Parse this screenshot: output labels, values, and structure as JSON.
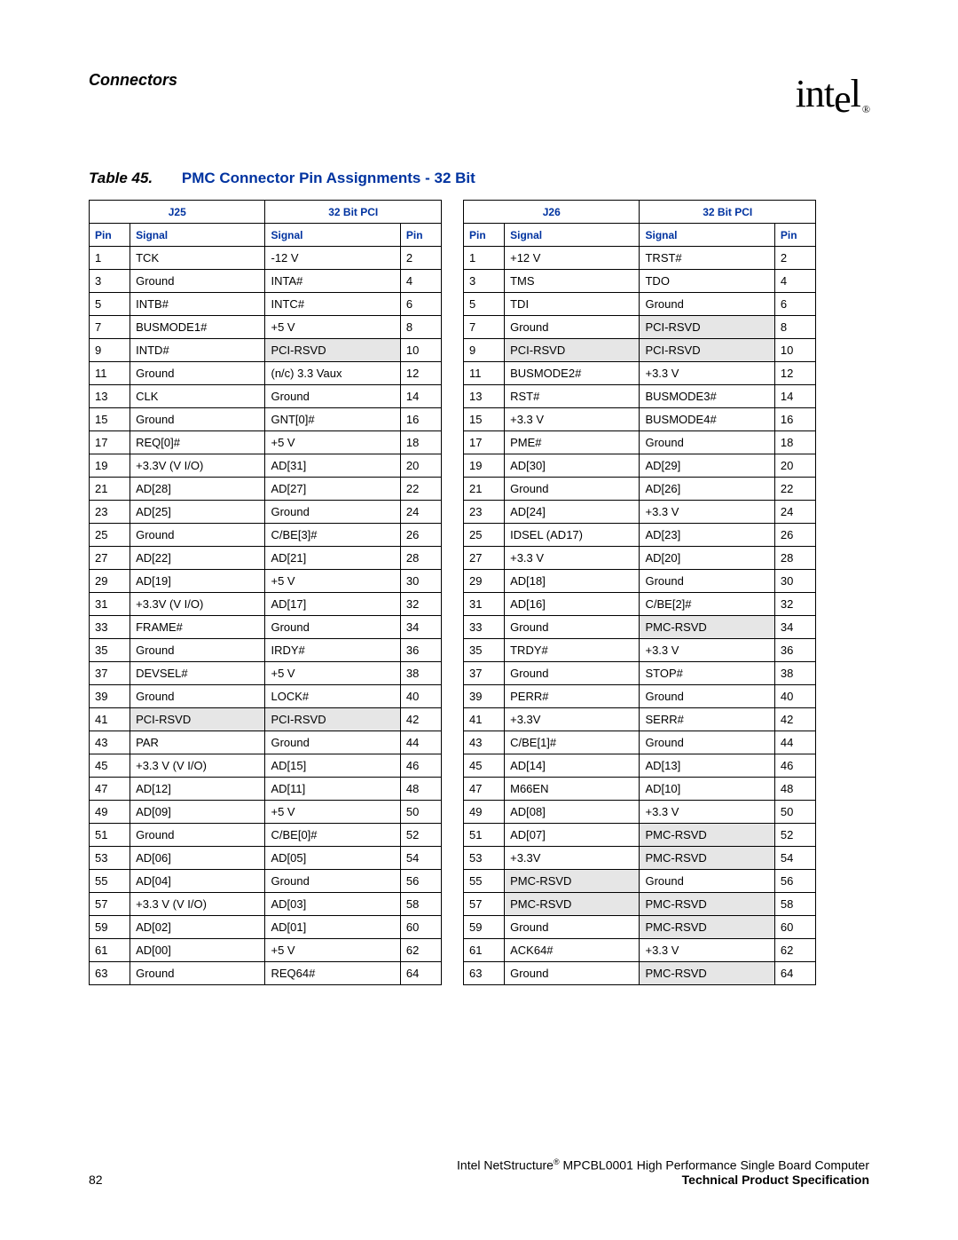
{
  "header": {
    "section": "Connectors",
    "logo_text": "intel",
    "logo_reg": "®"
  },
  "caption": {
    "label": "Table 45.",
    "title": "PMC Connector Pin Assignments - 32 Bit"
  },
  "col_headers": {
    "pin": "Pin",
    "signal": "Signal"
  },
  "table_left": {
    "conn": "J25",
    "group": "32 Bit PCI",
    "rows": [
      {
        "p1": "1",
        "s1": "TCK",
        "s2": "-12 V",
        "p2": "2",
        "sh1": false,
        "sh2": false
      },
      {
        "p1": "3",
        "s1": "Ground",
        "s2": "INTA#",
        "p2": "4",
        "sh1": false,
        "sh2": false
      },
      {
        "p1": "5",
        "s1": "INTB#",
        "s2": "INTC#",
        "p2": "6",
        "sh1": false,
        "sh2": false
      },
      {
        "p1": "7",
        "s1": "BUSMODE1#",
        "s2": "+5 V",
        "p2": "8",
        "sh1": false,
        "sh2": false
      },
      {
        "p1": "9",
        "s1": "INTD#",
        "s2": "PCI-RSVD",
        "p2": "10",
        "sh1": false,
        "sh2": true
      },
      {
        "p1": "11",
        "s1": "Ground",
        "s2": "(n/c) 3.3 Vaux",
        "p2": "12",
        "sh1": false,
        "sh2": false
      },
      {
        "p1": "13",
        "s1": "CLK",
        "s2": "Ground",
        "p2": "14",
        "sh1": false,
        "sh2": false
      },
      {
        "p1": "15",
        "s1": "Ground",
        "s2": "GNT[0]#",
        "p2": "16",
        "sh1": false,
        "sh2": false
      },
      {
        "p1": "17",
        "s1": "REQ[0]#",
        "s2": "+5 V",
        "p2": "18",
        "sh1": false,
        "sh2": false
      },
      {
        "p1": "19",
        "s1": "+3.3V (V I/O)",
        "s2": "AD[31]",
        "p2": "20",
        "sh1": false,
        "sh2": false
      },
      {
        "p1": "21",
        "s1": "AD[28]",
        "s2": "AD[27]",
        "p2": "22",
        "sh1": false,
        "sh2": false
      },
      {
        "p1": "23",
        "s1": "AD[25]",
        "s2": "Ground",
        "p2": "24",
        "sh1": false,
        "sh2": false
      },
      {
        "p1": "25",
        "s1": "Ground",
        "s2": "C/BE[3]#",
        "p2": "26",
        "sh1": false,
        "sh2": false
      },
      {
        "p1": "27",
        "s1": "AD[22]",
        "s2": "AD[21]",
        "p2": "28",
        "sh1": false,
        "sh2": false
      },
      {
        "p1": "29",
        "s1": "AD[19]",
        "s2": "+5 V",
        "p2": "30",
        "sh1": false,
        "sh2": false
      },
      {
        "p1": "31",
        "s1": "+3.3V (V I/O)",
        "s2": "AD[17]",
        "p2": "32",
        "sh1": false,
        "sh2": false
      },
      {
        "p1": "33",
        "s1": "FRAME#",
        "s2": "Ground",
        "p2": "34",
        "sh1": false,
        "sh2": false
      },
      {
        "p1": "35",
        "s1": "Ground",
        "s2": "IRDY#",
        "p2": "36",
        "sh1": false,
        "sh2": false
      },
      {
        "p1": "37",
        "s1": "DEVSEL#",
        "s2": "+5 V",
        "p2": "38",
        "sh1": false,
        "sh2": false
      },
      {
        "p1": "39",
        "s1": "Ground",
        "s2": "LOCK#",
        "p2": "40",
        "sh1": false,
        "sh2": false
      },
      {
        "p1": "41",
        "s1": "PCI-RSVD",
        "s2": "PCI-RSVD",
        "p2": "42",
        "sh1": true,
        "sh2": true
      },
      {
        "p1": "43",
        "s1": "PAR",
        "s2": "Ground",
        "p2": "44",
        "sh1": false,
        "sh2": false
      },
      {
        "p1": "45",
        "s1": "+3.3 V (V I/O)",
        "s2": "AD[15]",
        "p2": "46",
        "sh1": false,
        "sh2": false
      },
      {
        "p1": "47",
        "s1": "AD[12]",
        "s2": "AD[11]",
        "p2": "48",
        "sh1": false,
        "sh2": false
      },
      {
        "p1": "49",
        "s1": "AD[09]",
        "s2": "+5 V",
        "p2": "50",
        "sh1": false,
        "sh2": false
      },
      {
        "p1": "51",
        "s1": "Ground",
        "s2": "C/BE[0]#",
        "p2": "52",
        "sh1": false,
        "sh2": false
      },
      {
        "p1": "53",
        "s1": "AD[06]",
        "s2": "AD[05]",
        "p2": "54",
        "sh1": false,
        "sh2": false
      },
      {
        "p1": "55",
        "s1": "AD[04]",
        "s2": "Ground",
        "p2": "56",
        "sh1": false,
        "sh2": false
      },
      {
        "p1": "57",
        "s1": "+3.3 V (V I/O)",
        "s2": "AD[03]",
        "p2": "58",
        "sh1": false,
        "sh2": false
      },
      {
        "p1": "59",
        "s1": "AD[02]",
        "s2": "AD[01]",
        "p2": "60",
        "sh1": false,
        "sh2": false
      },
      {
        "p1": "61",
        "s1": "AD[00]",
        "s2": "+5 V",
        "p2": "62",
        "sh1": false,
        "sh2": false
      },
      {
        "p1": "63",
        "s1": "Ground",
        "s2": "REQ64#",
        "p2": "64",
        "sh1": false,
        "sh2": false
      }
    ]
  },
  "table_right": {
    "conn": "J26",
    "group": "32 Bit PCI",
    "rows": [
      {
        "p1": "1",
        "s1": "+12 V",
        "s2": "TRST#",
        "p2": "2",
        "sh1": false,
        "sh2": false
      },
      {
        "p1": "3",
        "s1": "TMS",
        "s2": "TDO",
        "p2": "4",
        "sh1": false,
        "sh2": false
      },
      {
        "p1": "5",
        "s1": "TDI",
        "s2": "Ground",
        "p2": "6",
        "sh1": false,
        "sh2": false
      },
      {
        "p1": "7",
        "s1": "Ground",
        "s2": "PCI-RSVD",
        "p2": "8",
        "sh1": false,
        "sh2": true
      },
      {
        "p1": "9",
        "s1": "PCI-RSVD",
        "s2": "PCI-RSVD",
        "p2": "10",
        "sh1": true,
        "sh2": true
      },
      {
        "p1": "11",
        "s1": "BUSMODE2#",
        "s2": "+3.3 V",
        "p2": "12",
        "sh1": false,
        "sh2": false
      },
      {
        "p1": "13",
        "s1": "RST#",
        "s2": "BUSMODE3#",
        "p2": "14",
        "sh1": false,
        "sh2": false
      },
      {
        "p1": "15",
        "s1": "+3.3 V",
        "s2": "BUSMODE4#",
        "p2": "16",
        "sh1": false,
        "sh2": false
      },
      {
        "p1": "17",
        "s1": "PME#",
        "s2": "Ground",
        "p2": "18",
        "sh1": false,
        "sh2": false
      },
      {
        "p1": "19",
        "s1": "AD[30]",
        "s2": "AD[29]",
        "p2": "20",
        "sh1": false,
        "sh2": false
      },
      {
        "p1": "21",
        "s1": "Ground",
        "s2": "AD[26]",
        "p2": "22",
        "sh1": false,
        "sh2": false
      },
      {
        "p1": "23",
        "s1": "AD[24]",
        "s2": "+3.3 V",
        "p2": "24",
        "sh1": false,
        "sh2": false
      },
      {
        "p1": "25",
        "s1": "IDSEL (AD17)",
        "s2": "AD[23]",
        "p2": "26",
        "sh1": false,
        "sh2": false
      },
      {
        "p1": "27",
        "s1": "+3.3 V",
        "s2": "AD[20]",
        "p2": "28",
        "sh1": false,
        "sh2": false
      },
      {
        "p1": "29",
        "s1": "AD[18]",
        "s2": "Ground",
        "p2": "30",
        "sh1": false,
        "sh2": false
      },
      {
        "p1": "31",
        "s1": "AD[16]",
        "s2": "C/BE[2]#",
        "p2": "32",
        "sh1": false,
        "sh2": false
      },
      {
        "p1": "33",
        "s1": "Ground",
        "s2": "PMC-RSVD",
        "p2": "34",
        "sh1": false,
        "sh2": true
      },
      {
        "p1": "35",
        "s1": "TRDY#",
        "s2": "+3.3 V",
        "p2": "36",
        "sh1": false,
        "sh2": false
      },
      {
        "p1": "37",
        "s1": "Ground",
        "s2": "STOP#",
        "p2": "38",
        "sh1": false,
        "sh2": false
      },
      {
        "p1": "39",
        "s1": "PERR#",
        "s2": "Ground",
        "p2": "40",
        "sh1": false,
        "sh2": false
      },
      {
        "p1": "41",
        "s1": "+3.3V",
        "s2": "SERR#",
        "p2": "42",
        "sh1": false,
        "sh2": false
      },
      {
        "p1": "43",
        "s1": "C/BE[1]#",
        "s2": "Ground",
        "p2": "44",
        "sh1": false,
        "sh2": false
      },
      {
        "p1": "45",
        "s1": "AD[14]",
        "s2": "AD[13]",
        "p2": "46",
        "sh1": false,
        "sh2": false
      },
      {
        "p1": "47",
        "s1": "M66EN",
        "s2": "AD[10]",
        "p2": "48",
        "sh1": false,
        "sh2": false
      },
      {
        "p1": "49",
        "s1": "AD[08]",
        "s2": "+3.3 V",
        "p2": "50",
        "sh1": false,
        "sh2": false
      },
      {
        "p1": "51",
        "s1": "AD[07]",
        "s2": "PMC-RSVD",
        "p2": "52",
        "sh1": false,
        "sh2": true
      },
      {
        "p1": "53",
        "s1": "+3.3V",
        "s2": "PMC-RSVD",
        "p2": "54",
        "sh1": false,
        "sh2": true
      },
      {
        "p1": "55",
        "s1": "PMC-RSVD",
        "s2": "Ground",
        "p2": "56",
        "sh1": true,
        "sh2": false
      },
      {
        "p1": "57",
        "s1": "PMC-RSVD",
        "s2": "PMC-RSVD",
        "p2": "58",
        "sh1": true,
        "sh2": true
      },
      {
        "p1": "59",
        "s1": "Ground",
        "s2": "PMC-RSVD",
        "p2": "60",
        "sh1": false,
        "sh2": true
      },
      {
        "p1": "61",
        "s1": "ACK64#",
        "s2": "+3.3 V",
        "p2": "62",
        "sh1": false,
        "sh2": false
      },
      {
        "p1": "63",
        "s1": "Ground",
        "s2": "PMC-RSVD",
        "p2": "64",
        "sh1": false,
        "sh2": true
      }
    ]
  },
  "footer": {
    "page_num": "82",
    "line1a": "Intel NetStructure",
    "line1b": " MPCBL0001 High Performance Single Board Computer",
    "line2": "Technical Product Specification",
    "reg": "®"
  }
}
